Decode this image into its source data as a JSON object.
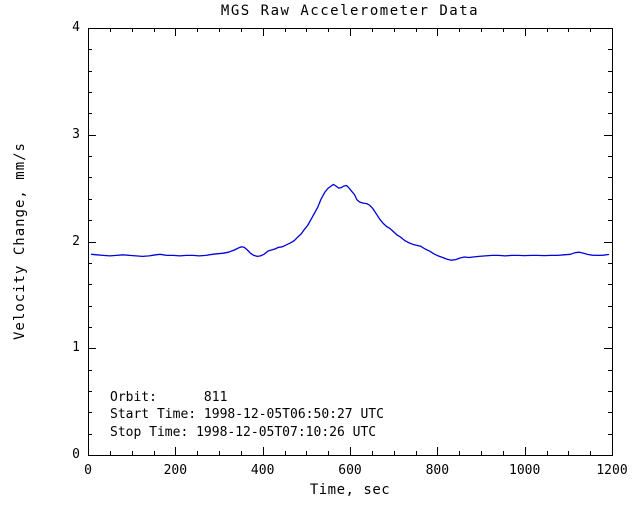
{
  "title": "MGS Raw Accelerometer Data",
  "annotation": {
    "lines": [
      "Orbit:      811",
      "Start Time: 1998-12-05T06:50:27 UTC",
      "Stop Time: 1998-12-05T07:10:26 UTC"
    ]
  },
  "chart_data": {
    "type": "line",
    "title": "MGS Raw Accelerometer Data",
    "xlabel": "Time, sec",
    "ylabel": "Velocity Change, mm/s",
    "xlim": [
      0,
      1200
    ],
    "ylim": [
      0,
      4
    ],
    "x_major_ticks": [
      0,
      200,
      400,
      600,
      800,
      1000,
      1200
    ],
    "x_tick_labels": [
      "0",
      "200",
      "400",
      "600",
      "800",
      "1000",
      "1200"
    ],
    "x_minor_interval": 50,
    "y_major_ticks": [
      0,
      1,
      2,
      3,
      4
    ],
    "y_tick_labels": [
      "0",
      "1",
      "2",
      "3",
      "4"
    ],
    "y_minor_interval": 0.2,
    "grid": false,
    "legend": "none",
    "line_color": "#0000dd",
    "axis_color": "#000000",
    "series": [
      {
        "name": "velocity_change_mm_s",
        "points": [
          [
            8,
            1.88
          ],
          [
            20,
            1.875
          ],
          [
            35,
            1.87
          ],
          [
            50,
            1.865
          ],
          [
            65,
            1.87
          ],
          [
            80,
            1.875
          ],
          [
            95,
            1.87
          ],
          [
            110,
            1.865
          ],
          [
            125,
            1.86
          ],
          [
            140,
            1.865
          ],
          [
            155,
            1.875
          ],
          [
            165,
            1.88
          ],
          [
            180,
            1.87
          ],
          [
            195,
            1.87
          ],
          [
            210,
            1.865
          ],
          [
            225,
            1.87
          ],
          [
            240,
            1.87
          ],
          [
            255,
            1.865
          ],
          [
            270,
            1.87
          ],
          [
            285,
            1.88
          ],
          [
            295,
            1.885
          ],
          [
            310,
            1.89
          ],
          [
            322,
            1.9
          ],
          [
            335,
            1.92
          ],
          [
            345,
            1.94
          ],
          [
            352,
            1.95
          ],
          [
            358,
            1.945
          ],
          [
            365,
            1.92
          ],
          [
            372,
            1.89
          ],
          [
            380,
            1.87
          ],
          [
            388,
            1.86
          ],
          [
            395,
            1.865
          ],
          [
            403,
            1.88
          ],
          [
            412,
            1.91
          ],
          [
            420,
            1.92
          ],
          [
            428,
            1.93
          ],
          [
            436,
            1.945
          ],
          [
            445,
            1.95
          ],
          [
            455,
            1.97
          ],
          [
            465,
            1.99
          ],
          [
            473,
            2.01
          ],
          [
            480,
            2.04
          ],
          [
            488,
            2.07
          ],
          [
            495,
            2.11
          ],
          [
            503,
            2.15
          ],
          [
            510,
            2.2
          ],
          [
            518,
            2.26
          ],
          [
            526,
            2.32
          ],
          [
            534,
            2.4
          ],
          [
            542,
            2.46
          ],
          [
            550,
            2.5
          ],
          [
            557,
            2.52
          ],
          [
            562,
            2.535
          ],
          [
            568,
            2.52
          ],
          [
            574,
            2.5
          ],
          [
            580,
            2.505
          ],
          [
            586,
            2.52
          ],
          [
            592,
            2.525
          ],
          [
            598,
            2.5
          ],
          [
            604,
            2.47
          ],
          [
            610,
            2.44
          ],
          [
            616,
            2.39
          ],
          [
            622,
            2.37
          ],
          [
            630,
            2.36
          ],
          [
            638,
            2.355
          ],
          [
            645,
            2.34
          ],
          [
            652,
            2.31
          ],
          [
            660,
            2.26
          ],
          [
            668,
            2.21
          ],
          [
            676,
            2.17
          ],
          [
            684,
            2.14
          ],
          [
            692,
            2.12
          ],
          [
            700,
            2.09
          ],
          [
            708,
            2.06
          ],
          [
            716,
            2.04
          ],
          [
            725,
            2.01
          ],
          [
            734,
            1.99
          ],
          [
            743,
            1.975
          ],
          [
            752,
            1.965
          ],
          [
            762,
            1.955
          ],
          [
            772,
            1.93
          ],
          [
            782,
            1.91
          ],
          [
            792,
            1.885
          ],
          [
            802,
            1.865
          ],
          [
            812,
            1.85
          ],
          [
            822,
            1.835
          ],
          [
            832,
            1.825
          ],
          [
            842,
            1.83
          ],
          [
            852,
            1.845
          ],
          [
            862,
            1.855
          ],
          [
            872,
            1.85
          ],
          [
            882,
            1.855
          ],
          [
            895,
            1.86
          ],
          [
            910,
            1.865
          ],
          [
            925,
            1.87
          ],
          [
            940,
            1.87
          ],
          [
            955,
            1.865
          ],
          [
            970,
            1.87
          ],
          [
            985,
            1.87
          ],
          [
            1000,
            1.868
          ],
          [
            1015,
            1.87
          ],
          [
            1030,
            1.87
          ],
          [
            1045,
            1.868
          ],
          [
            1060,
            1.87
          ],
          [
            1075,
            1.87
          ],
          [
            1090,
            1.875
          ],
          [
            1105,
            1.88
          ],
          [
            1115,
            1.895
          ],
          [
            1125,
            1.9
          ],
          [
            1135,
            1.89
          ],
          [
            1145,
            1.878
          ],
          [
            1155,
            1.872
          ],
          [
            1168,
            1.87
          ],
          [
            1180,
            1.872
          ],
          [
            1192,
            1.878
          ]
        ]
      }
    ],
    "annotations": [
      {
        "label": "Orbit:",
        "value": "811"
      },
      {
        "label": "Start Time:",
        "value": "1998-12-05T06:50:27 UTC"
      },
      {
        "label": "Stop Time:",
        "value": "1998-12-05T07:10:26 UTC"
      }
    ]
  }
}
